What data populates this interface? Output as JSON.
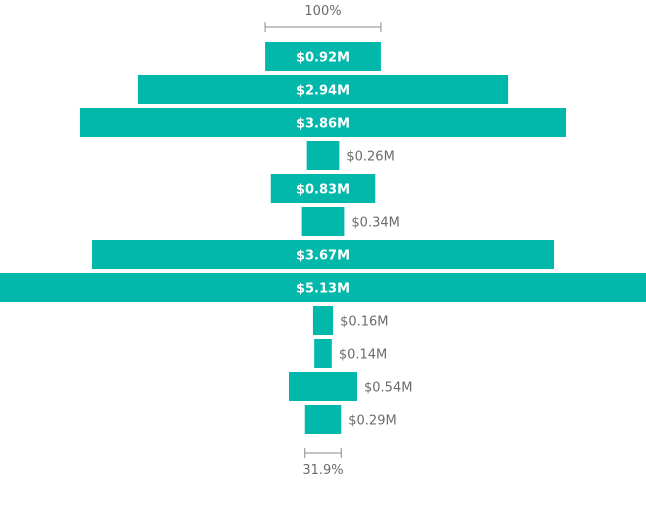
{
  "chart_data": {
    "type": "funnel",
    "title": "",
    "bar_color": "#01B8AA",
    "top_label": "100%",
    "bottom_label": "31.9%",
    "stages": [
      {
        "label": "$0.92M",
        "value": 0.92
      },
      {
        "label": "$2.94M",
        "value": 2.94
      },
      {
        "label": "$3.86M",
        "value": 3.86
      },
      {
        "label": "$0.26M",
        "value": 0.26
      },
      {
        "label": "$0.83M",
        "value": 0.83
      },
      {
        "label": "$0.34M",
        "value": 0.34
      },
      {
        "label": "$3.67M",
        "value": 3.67
      },
      {
        "label": "$5.13M",
        "value": 5.13
      },
      {
        "label": "$0.16M",
        "value": 0.16
      },
      {
        "label": "$0.14M",
        "value": 0.14
      },
      {
        "label": "$0.54M",
        "value": 0.54
      },
      {
        "label": "$0.29M",
        "value": 0.29
      }
    ]
  }
}
